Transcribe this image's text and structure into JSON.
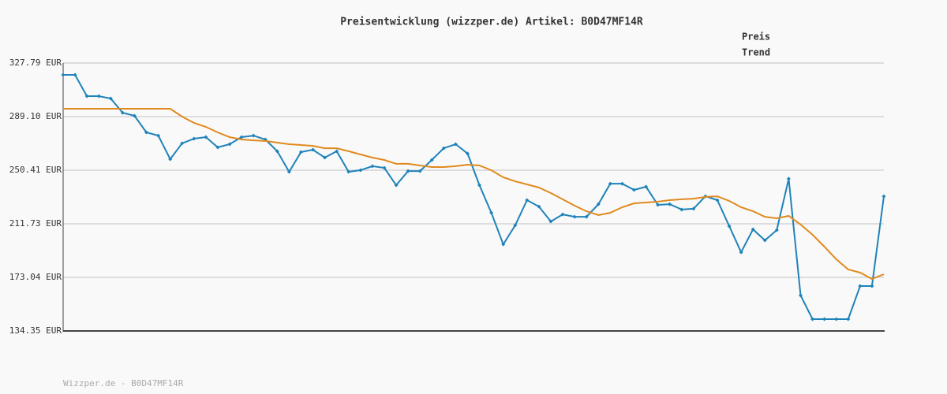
{
  "chart_data": {
    "type": "line",
    "title": "Preisentwicklung (wizzper.de) Artikel: B0D47MF14R",
    "footer": "Wizzper.de - B0D47MF14R",
    "ylim": [
      134.35,
      327.79
    ],
    "yticks": [
      {
        "value": 134.35,
        "label": "134.35 EUR"
      },
      {
        "value": 173.04,
        "label": "173.04 EUR"
      },
      {
        "value": 211.73,
        "label": "211.73 EUR"
      },
      {
        "value": 250.41,
        "label": "250.41 EUR"
      },
      {
        "value": 289.1,
        "label": "289.10 EUR"
      },
      {
        "value": 327.79,
        "label": "327.79 EUR"
      }
    ],
    "grid": true,
    "legend": "top-right",
    "series": [
      {
        "name": "Preis",
        "color": "#1f83b9",
        "markers": true,
        "values": [
          319.25,
          319.25,
          303.9,
          303.9,
          302.2,
          291.9,
          289.7,
          277.7,
          275.4,
          258.4,
          269.8,
          273.2,
          274.3,
          266.9,
          269.2,
          274.3,
          275.4,
          272.6,
          264.1,
          249.3,
          263.5,
          265.2,
          259.5,
          264.1,
          249.3,
          250.4,
          253.3,
          252.1,
          239.6,
          249.8,
          249.8,
          257.8,
          266.3,
          269.2,
          262.4,
          239.6,
          219.7,
          196.9,
          210.6,
          228.8,
          224.2,
          213.4,
          218.5,
          216.8,
          216.8,
          225.9,
          240.7,
          240.7,
          236.2,
          238.5,
          225.4,
          225.9,
          222.0,
          222.6,
          231.6,
          228.8,
          210.0,
          191.2,
          207.7,
          199.8,
          207.2,
          244.2,
          160.0,
          142.9,
          142.9,
          142.9,
          142.9,
          166.8,
          166.8,
          231.6
        ]
      },
      {
        "name": "Trend",
        "color": "#e08a1e",
        "markers": false,
        "values": [
          294.8,
          294.8,
          294.8,
          294.8,
          294.8,
          294.8,
          294.8,
          294.8,
          294.8,
          294.8,
          289.1,
          284.6,
          281.7,
          277.7,
          274.3,
          272.6,
          272.0,
          271.5,
          270.3,
          269.2,
          268.6,
          268.0,
          266.3,
          266.3,
          264.1,
          261.8,
          259.5,
          257.8,
          255.0,
          255.0,
          253.8,
          252.7,
          252.7,
          253.3,
          254.4,
          253.8,
          250.4,
          245.3,
          242.4,
          240.2,
          237.9,
          233.9,
          229.4,
          224.8,
          220.8,
          218.0,
          219.7,
          223.7,
          226.5,
          227.1,
          227.7,
          228.8,
          229.4,
          229.9,
          231.1,
          231.6,
          228.2,
          223.7,
          220.8,
          216.8,
          215.7,
          217.4,
          211.2,
          203.8,
          195.2,
          186.1,
          178.7,
          176.5,
          171.9,
          175.3
        ]
      }
    ]
  }
}
